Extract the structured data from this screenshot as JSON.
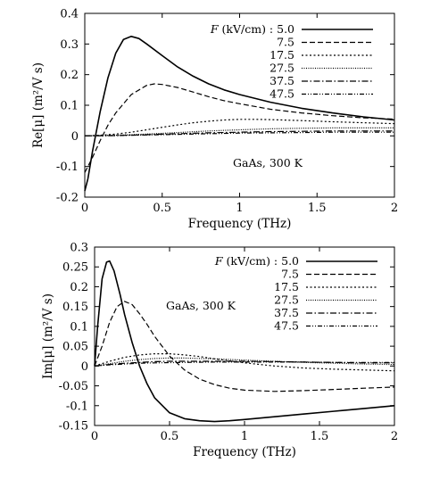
{
  "chart_data": [
    {
      "type": "line",
      "xlabel": "Frequency  (THz)",
      "ylabel": "Re[μ]  (m²/V s)",
      "xlim": [
        0,
        2
      ],
      "ylim": [
        -0.2,
        0.4
      ],
      "xticks": [
        "0",
        "0.5",
        "1",
        "1.5",
        "2"
      ],
      "xtick_values": [
        0,
        0.5,
        1,
        1.5,
        2
      ],
      "yticks": [
        "-0.2",
        "-0.1",
        "0",
        "0.1",
        "0.2",
        "0.3",
        "0.4"
      ],
      "ytick_values": [
        -0.2,
        -0.1,
        0,
        0.1,
        0.2,
        0.3,
        0.4
      ],
      "legend_header": "F (kV/cm) : ",
      "legend_position": "top-right",
      "annotation": "GaAs, 300 K",
      "grid": false,
      "series": [
        {
          "name": "5.0",
          "style": "solid",
          "x": [
            0,
            0.02,
            0.05,
            0.1,
            0.15,
            0.2,
            0.25,
            0.3,
            0.35,
            0.4,
            0.5,
            0.6,
            0.7,
            0.8,
            0.9,
            1.0,
            1.2,
            1.4,
            1.6,
            1.8,
            2.0
          ],
          "y": [
            -0.18,
            -0.14,
            -0.05,
            0.08,
            0.19,
            0.27,
            0.315,
            0.325,
            0.318,
            0.3,
            0.262,
            0.225,
            0.195,
            0.17,
            0.15,
            0.135,
            0.11,
            0.09,
            0.075,
            0.062,
            0.052
          ]
        },
        {
          "name": "7.5",
          "style": "dashed",
          "x": [
            0,
            0.05,
            0.1,
            0.15,
            0.2,
            0.3,
            0.4,
            0.45,
            0.5,
            0.6,
            0.7,
            0.8,
            0.9,
            1.0,
            1.2,
            1.4,
            1.6,
            1.8,
            2.0
          ],
          "y": [
            -0.12,
            -0.07,
            -0.015,
            0.035,
            0.075,
            0.135,
            0.165,
            0.17,
            0.168,
            0.158,
            0.143,
            0.128,
            0.115,
            0.105,
            0.087,
            0.075,
            0.066,
            0.059,
            0.055
          ]
        },
        {
          "name": "17.5",
          "style": "dotted",
          "x": [
            0,
            0.1,
            0.2,
            0.3,
            0.4,
            0.5,
            0.6,
            0.7,
            0.8,
            0.9,
            1.0,
            1.1,
            1.2,
            1.4,
            1.6,
            1.8,
            2.0
          ],
          "y": [
            0,
            0.002,
            0.006,
            0.012,
            0.02,
            0.028,
            0.036,
            0.043,
            0.048,
            0.052,
            0.054,
            0.054,
            0.053,
            0.05,
            0.046,
            0.043,
            0.04
          ]
        },
        {
          "name": "27.5",
          "style": "fine-dotted",
          "x": [
            0,
            0.2,
            0.4,
            0.6,
            0.8,
            1.0,
            1.2,
            1.4,
            1.6,
            1.8,
            2.0
          ],
          "y": [
            0,
            0.002,
            0.006,
            0.011,
            0.016,
            0.02,
            0.023,
            0.025,
            0.026,
            0.026,
            0.026
          ]
        },
        {
          "name": "37.5",
          "style": "dash-dot",
          "x": [
            0,
            0.2,
            0.4,
            0.6,
            0.8,
            1.0,
            1.2,
            1.4,
            1.6,
            1.8,
            2.0
          ],
          "y": [
            0,
            0.001,
            0.004,
            0.007,
            0.01,
            0.012,
            0.014,
            0.015,
            0.016,
            0.016,
            0.016
          ]
        },
        {
          "name": "47.5",
          "style": "dash-dot-dot",
          "x": [
            0,
            0.2,
            0.4,
            0.6,
            0.8,
            1.0,
            1.2,
            1.4,
            1.6,
            1.8,
            2.0
          ],
          "y": [
            0,
            0.001,
            0.003,
            0.005,
            0.007,
            0.009,
            0.01,
            0.011,
            0.012,
            0.012,
            0.012
          ]
        }
      ]
    },
    {
      "type": "line",
      "xlabel": "Frequency  (THz)",
      "ylabel": "Im[μ]  (m²/V s)",
      "xlim": [
        0,
        2
      ],
      "ylim": [
        -0.15,
        0.3
      ],
      "xticks": [
        "0",
        "0.5",
        "1",
        "1.5",
        "2"
      ],
      "xtick_values": [
        0,
        0.5,
        1,
        1.5,
        2
      ],
      "yticks": [
        "-0.15",
        "-0.1",
        "-0.05",
        "0",
        "0.05",
        "0.1",
        "0.15",
        "0.2",
        "0.25",
        "0.3"
      ],
      "ytick_values": [
        -0.15,
        -0.1,
        -0.05,
        0,
        0.05,
        0.1,
        0.15,
        0.2,
        0.25,
        0.3
      ],
      "legend_header": "F (kV/cm) : ",
      "legend_position": "top-right",
      "annotation": "GaAs, 300 K",
      "grid": false,
      "series": [
        {
          "name": "5.0",
          "style": "solid",
          "x": [
            0,
            0.02,
            0.05,
            0.08,
            0.1,
            0.13,
            0.17,
            0.2,
            0.25,
            0.3,
            0.35,
            0.4,
            0.5,
            0.6,
            0.7,
            0.8,
            0.9,
            1.0,
            1.2,
            1.4,
            1.6,
            1.8,
            2.0
          ],
          "y": [
            0,
            0.1,
            0.22,
            0.262,
            0.265,
            0.24,
            0.18,
            0.13,
            0.06,
            0.0,
            -0.045,
            -0.08,
            -0.118,
            -0.133,
            -0.138,
            -0.14,
            -0.138,
            -0.135,
            -0.128,
            -0.121,
            -0.114,
            -0.107,
            -0.1
          ]
        },
        {
          "name": "7.5",
          "style": "dashed",
          "x": [
            0,
            0.05,
            0.1,
            0.15,
            0.2,
            0.25,
            0.3,
            0.35,
            0.4,
            0.5,
            0.6,
            0.7,
            0.8,
            0.9,
            1.0,
            1.2,
            1.4,
            1.6,
            1.8,
            2.0
          ],
          "y": [
            0,
            0.05,
            0.11,
            0.15,
            0.163,
            0.155,
            0.132,
            0.105,
            0.075,
            0.025,
            -0.01,
            -0.033,
            -0.047,
            -0.056,
            -0.061,
            -0.064,
            -0.062,
            -0.059,
            -0.056,
            -0.053
          ]
        },
        {
          "name": "17.5",
          "style": "dotted",
          "x": [
            0,
            0.1,
            0.2,
            0.3,
            0.4,
            0.5,
            0.6,
            0.7,
            0.8,
            0.9,
            1.0,
            1.2,
            1.4,
            1.6,
            1.8,
            2.0
          ],
          "y": [
            0,
            0.012,
            0.022,
            0.028,
            0.031,
            0.031,
            0.028,
            0.024,
            0.018,
            0.013,
            0.008,
            0.0,
            -0.005,
            -0.008,
            -0.01,
            -0.012
          ]
        },
        {
          "name": "27.5",
          "style": "fine-dotted",
          "x": [
            0,
            0.1,
            0.2,
            0.3,
            0.4,
            0.5,
            0.6,
            0.7,
            0.8,
            1.0,
            1.2,
            1.4,
            1.6,
            1.8,
            2.0
          ],
          "y": [
            0,
            0.006,
            0.012,
            0.016,
            0.019,
            0.02,
            0.02,
            0.019,
            0.018,
            0.015,
            0.012,
            0.009,
            0.007,
            0.005,
            0.004
          ]
        },
        {
          "name": "37.5",
          "style": "dash-dot",
          "x": [
            0,
            0.1,
            0.2,
            0.3,
            0.4,
            0.5,
            0.6,
            0.8,
            1.0,
            1.2,
            1.4,
            1.6,
            1.8,
            2.0
          ],
          "y": [
            0,
            0.004,
            0.007,
            0.009,
            0.011,
            0.012,
            0.012,
            0.012,
            0.012,
            0.011,
            0.01,
            0.009,
            0.008,
            0.008
          ]
        },
        {
          "name": "47.5",
          "style": "dash-dot-dot",
          "x": [
            0,
            0.1,
            0.2,
            0.3,
            0.4,
            0.6,
            0.8,
            1.0,
            1.2,
            1.4,
            1.6,
            1.8,
            2.0
          ],
          "y": [
            0,
            0.003,
            0.005,
            0.007,
            0.008,
            0.009,
            0.01,
            0.01,
            0.01,
            0.01,
            0.009,
            0.009,
            0.009
          ]
        }
      ]
    }
  ]
}
